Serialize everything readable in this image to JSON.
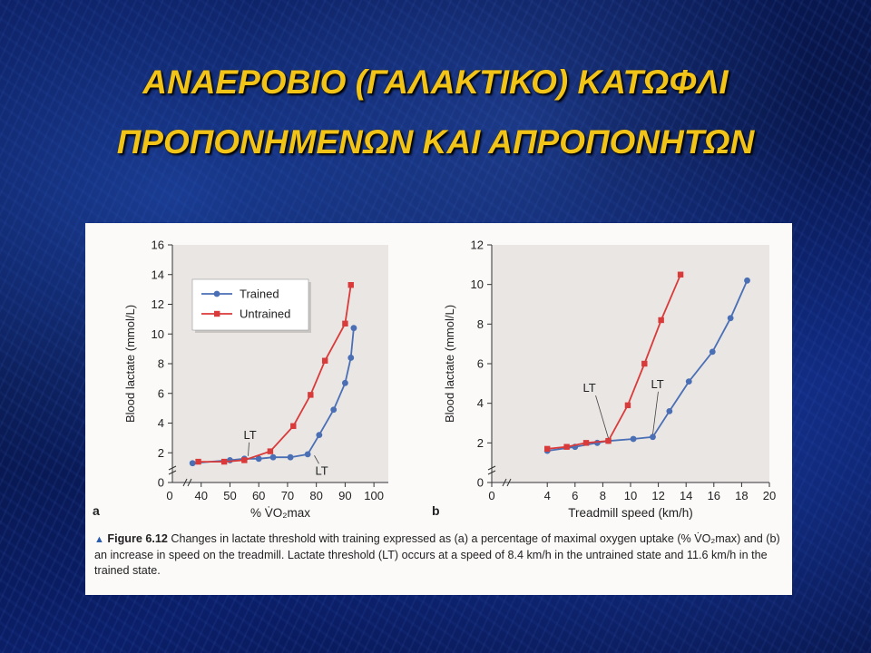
{
  "slide": {
    "title_line1": "ΑΝΑΕΡΟΒΙΟ (ΓΑΛΑΚΤΙΚΟ) ΚΑΤΩΦΛΙ",
    "title_line2": "ΠΡΟΠΟΝΗΜΕΝΩΝ ΚΑΙ ΑΠΡΟΠΟΝΗΤΩΝ",
    "title_color": "#f2c418"
  },
  "caption": {
    "figure_label": "Figure 6.12",
    "text": "Changes in lactate threshold with training expressed as (a) a percentage of maximal oxygen uptake (% V̇O₂max) and (b) an increase in speed on the treadmill. Lactate threshold (LT) occurs at a speed of 8.4 km/h in the untrained state and 11.6 km/h in the trained state."
  },
  "chart_data": [
    {
      "type": "line",
      "panel_label": "a",
      "xlabel": "% V̇O₂max",
      "ylabel": "Blood lactate (mmol/L)",
      "xlim": [
        30,
        105
      ],
      "ylim": [
        0,
        16
      ],
      "x_ticks": [
        40,
        50,
        60,
        70,
        80,
        90,
        100
      ],
      "x_origin_label": "0",
      "y_ticks": [
        0,
        2,
        4,
        6,
        8,
        10,
        12,
        14,
        16
      ],
      "legend": "top-left",
      "series": [
        {
          "name": "Trained",
          "color": "#4a6fb5",
          "marker": "circle",
          "points": [
            [
              37,
              1.3
            ],
            [
              50,
              1.5
            ],
            [
              55,
              1.6
            ],
            [
              60,
              1.6
            ],
            [
              65,
              1.7
            ],
            [
              71,
              1.7
            ],
            [
              77,
              1.9
            ],
            [
              81,
              3.2
            ],
            [
              86,
              4.9
            ],
            [
              90,
              6.7
            ],
            [
              92,
              8.4
            ],
            [
              93,
              10.4
            ]
          ]
        },
        {
          "name": "Untrained",
          "color": "#d93a3a",
          "marker": "square",
          "points": [
            [
              39,
              1.4
            ],
            [
              48,
              1.4
            ],
            [
              55,
              1.5
            ],
            [
              64,
              2.1
            ],
            [
              72,
              3.8
            ],
            [
              78,
              5.9
            ],
            [
              83,
              8.2
            ],
            [
              90,
              10.7
            ],
            [
              92,
              13.3
            ]
          ]
        }
      ],
      "annotations": [
        {
          "text": "LT",
          "x": 56,
          "y": 1.6
        },
        {
          "text": "LT",
          "x": 79,
          "y": 2.0
        }
      ]
    },
    {
      "type": "line",
      "panel_label": "b",
      "xlabel": "Treadmill speed (km/h)",
      "ylabel": "Blood lactate (mmol/L)",
      "xlim": [
        0,
        20
      ],
      "ylim": [
        0,
        12
      ],
      "x_ticks": [
        0,
        4,
        6,
        8,
        10,
        12,
        14,
        16,
        18,
        20
      ],
      "y_ticks": [
        0,
        2,
        4,
        6,
        8,
        10,
        12
      ],
      "series": [
        {
          "name": "Trained",
          "color": "#4a6fb5",
          "marker": "circle",
          "points": [
            [
              4,
              1.6
            ],
            [
              6,
              1.8
            ],
            [
              7.6,
              2.0
            ],
            [
              8.4,
              2.1
            ],
            [
              10.2,
              2.2
            ],
            [
              11.6,
              2.3
            ],
            [
              12.8,
              3.6
            ],
            [
              14.2,
              5.1
            ],
            [
              15.9,
              6.6
            ],
            [
              17.2,
              8.3
            ],
            [
              18.4,
              10.2
            ]
          ]
        },
        {
          "name": "Untrained",
          "color": "#d93a3a",
          "marker": "square",
          "points": [
            [
              4,
              1.7
            ],
            [
              5.4,
              1.8
            ],
            [
              6.8,
              2.0
            ],
            [
              8.4,
              2.1
            ],
            [
              9.8,
              3.9
            ],
            [
              11,
              6.0
            ],
            [
              12.2,
              8.2
            ],
            [
              13.6,
              10.5
            ]
          ]
        }
      ],
      "annotations": [
        {
          "text": "LT",
          "x": 8.4,
          "y": 2.1
        },
        {
          "text": "LT",
          "x": 11.6,
          "y": 2.3
        }
      ]
    }
  ]
}
